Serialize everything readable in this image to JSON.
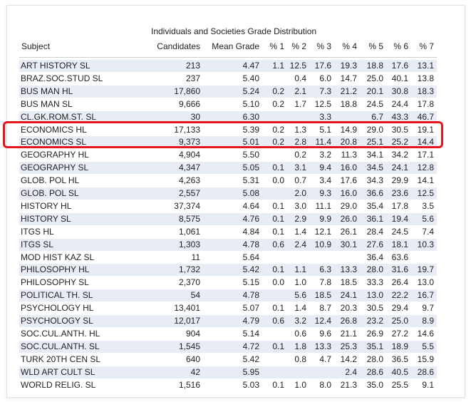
{
  "table": {
    "title": "Individuals and Societies Grade Distribution",
    "headers": [
      "Subject",
      "Candidates",
      "Mean Grade",
      "% 1",
      "% 2",
      "% 3",
      "% 4",
      "% 5",
      "% 6",
      "% 7"
    ],
    "rows": [
      [
        "ART HISTORY SL",
        "213",
        "4.47",
        "1.1",
        "12.5",
        "17.6",
        "19.3",
        "18.8",
        "17.6",
        "13.1"
      ],
      [
        "BRAZ.SOC.STUD SL",
        "237",
        "5.40",
        "",
        "0.4",
        "6.0",
        "14.7",
        "25.0",
        "40.1",
        "13.8"
      ],
      [
        "BUS MAN HL",
        "17,860",
        "5.24",
        "0.2",
        "2.1",
        "7.3",
        "21.2",
        "20.1",
        "30.8",
        "18.3"
      ],
      [
        "BUS MAN SL",
        "9,666",
        "5.10",
        "0.2",
        "1.7",
        "12.5",
        "18.8",
        "24.5",
        "24.4",
        "17.8"
      ],
      [
        "CL.GK.ROM.ST. SL",
        "30",
        "6.30",
        "",
        "",
        "3.3",
        "",
        "6.7",
        "43.3",
        "46.7"
      ],
      [
        "ECONOMICS HL",
        "17,133",
        "5.39",
        "0.2",
        "1.3",
        "5.1",
        "14.9",
        "29.0",
        "30.5",
        "19.1"
      ],
      [
        "ECONOMICS SL",
        "9,373",
        "5.01",
        "0.2",
        "2.8",
        "11.4",
        "20.8",
        "25.1",
        "25.2",
        "14.4"
      ],
      [
        "GEOGRAPHY HL",
        "4,904",
        "5.50",
        "",
        "0.2",
        "3.2",
        "11.3",
        "34.1",
        "34.2",
        "17.1"
      ],
      [
        "GEOGRAPHY SL",
        "4,347",
        "5.05",
        "0.1",
        "3.1",
        "9.4",
        "16.0",
        "34.5",
        "24.1",
        "12.8"
      ],
      [
        "GLOB. POL HL",
        "4,263",
        "5.31",
        "0.0",
        "0.7",
        "3.4",
        "17.6",
        "34.3",
        "29.9",
        "14.1"
      ],
      [
        "GLOB. POL SL",
        "2,557",
        "5.08",
        "",
        "2.0",
        "9.3",
        "16.0",
        "36.6",
        "23.6",
        "12.5"
      ],
      [
        "HISTORY HL",
        "37,374",
        "4.64",
        "0.1",
        "3.0",
        "11.1",
        "29.0",
        "35.4",
        "17.8",
        "3.5"
      ],
      [
        "HISTORY SL",
        "8,575",
        "4.76",
        "0.1",
        "2.9",
        "9.9",
        "26.0",
        "36.1",
        "19.4",
        "5.6"
      ],
      [
        "ITGS HL",
        "1,061",
        "4.84",
        "0.1",
        "1.4",
        "12.1",
        "26.1",
        "28.4",
        "24.5",
        "7.4"
      ],
      [
        "ITGS SL",
        "1,303",
        "4.78",
        "0.6",
        "2.4",
        "10.9",
        "30.1",
        "27.6",
        "18.1",
        "10.3"
      ],
      [
        "MOD HIST KAZ SL",
        "11",
        "5.64",
        "",
        "",
        "",
        "",
        "36.4",
        "63.6",
        ""
      ],
      [
        "PHILOSOPHY HL",
        "1,732",
        "5.42",
        "0.1",
        "1.1",
        "6.3",
        "13.3",
        "28.0",
        "31.6",
        "19.7"
      ],
      [
        "PHILOSOPHY SL",
        "2,370",
        "5.15",
        "0.0",
        "1.0",
        "7.8",
        "18.5",
        "33.3",
        "26.4",
        "13.0"
      ],
      [
        "POLITICAL TH. SL",
        "54",
        "4.78",
        "",
        "5.6",
        "18.5",
        "24.1",
        "13.0",
        "22.2",
        "16.7"
      ],
      [
        "PSYCHOLOGY HL",
        "13,401",
        "5.07",
        "0.1",
        "1.4",
        "8.7",
        "20.3",
        "30.5",
        "29.4",
        "9.7"
      ],
      [
        "PSYCHOLOGY SL",
        "12,017",
        "4.79",
        "0.6",
        "3.2",
        "12.4",
        "26.8",
        "23.2",
        "25.0",
        "8.9"
      ],
      [
        "SOC.CUL.ANTH. HL",
        "904",
        "5.14",
        "",
        "0.6",
        "9.6",
        "21.1",
        "26.9",
        "27.2",
        "14.6"
      ],
      [
        "SOC.CUL.ANTH. SL",
        "1,545",
        "4.72",
        "0.1",
        "1.8",
        "13.3",
        "25.3",
        "35.1",
        "18.9",
        "5.5"
      ],
      [
        "TURK 20TH CEN SL",
        "640",
        "5.42",
        "",
        "0.8",
        "4.7",
        "14.2",
        "28.0",
        "36.5",
        "15.9"
      ],
      [
        "WLD ART CULT SL",
        "42",
        "5.95",
        "",
        "",
        "",
        "2.4",
        "28.6",
        "40.5",
        "28.6"
      ],
      [
        "WORLD RELIG. SL",
        "1,516",
        "5.03",
        "0.1",
        "1.0",
        "8.0",
        "21.3",
        "35.0",
        "25.5",
        "9.1"
      ]
    ],
    "highlighted_rows": [
      "ECONOMICS HL",
      "ECONOMICS SL"
    ],
    "highlight_color": "#e8141c",
    "shade_color": "#e8ecf4"
  }
}
